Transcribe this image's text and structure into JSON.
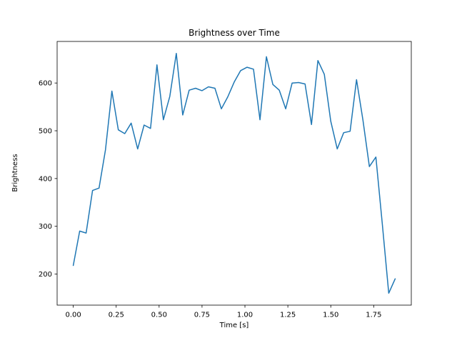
{
  "chart_data": {
    "type": "line",
    "title": "Brightness over Time",
    "xlabel": "Time [s]",
    "ylabel": "Brightness",
    "line_color": "#1f77b4",
    "grid": false,
    "legend": null,
    "xlim": [
      -0.094,
      1.969
    ],
    "ylim": [
      135,
      687
    ],
    "xticks": [
      0.0,
      0.25,
      0.5,
      0.75,
      1.0,
      1.25,
      1.5,
      1.75
    ],
    "xtick_labels": [
      "0.00",
      "0.25",
      "0.50",
      "0.75",
      "1.00",
      "1.25",
      "1.50",
      "1.75"
    ],
    "yticks": [
      200,
      300,
      400,
      500,
      600
    ],
    "ytick_labels": [
      "200",
      "300",
      "400",
      "500",
      "600"
    ],
    "x": [
      0.0,
      0.0375,
      0.075,
      0.1125,
      0.15,
      0.1875,
      0.225,
      0.2625,
      0.3,
      0.3375,
      0.375,
      0.4125,
      0.45,
      0.4875,
      0.525,
      0.5625,
      0.6,
      0.6375,
      0.675,
      0.7125,
      0.75,
      0.7875,
      0.825,
      0.8625,
      0.9,
      0.9375,
      0.975,
      1.0125,
      1.05,
      1.0875,
      1.125,
      1.1625,
      1.2,
      1.2375,
      1.275,
      1.3125,
      1.35,
      1.3875,
      1.425,
      1.4625,
      1.5,
      1.5375,
      1.575,
      1.6125,
      1.65,
      1.6875,
      1.725,
      1.7625,
      1.8,
      1.8375,
      1.875
    ],
    "y": [
      218,
      290,
      286,
      375,
      380,
      460,
      583,
      502,
      494,
      516,
      462,
      512,
      505,
      638,
      523,
      572,
      662,
      533,
      585,
      589,
      584,
      592,
      589,
      546,
      571,
      602,
      626,
      633,
      629,
      523,
      655,
      597,
      585,
      546,
      600,
      601,
      598,
      513,
      647,
      618,
      520,
      462,
      496,
      499,
      607,
      522,
      425,
      445,
      305,
      160,
      190
    ]
  }
}
